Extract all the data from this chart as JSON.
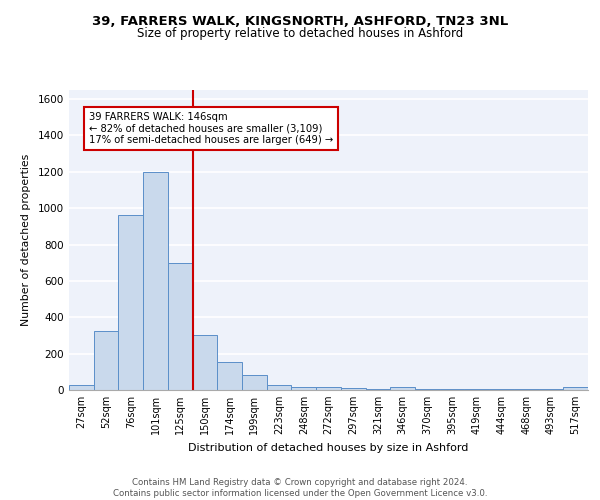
{
  "title1": "39, FARRERS WALK, KINGSNORTH, ASHFORD, TN23 3NL",
  "title2": "Size of property relative to detached houses in Ashford",
  "xlabel": "Distribution of detached houses by size in Ashford",
  "ylabel": "Number of detached properties",
  "categories": [
    "27sqm",
    "52sqm",
    "76sqm",
    "101sqm",
    "125sqm",
    "150sqm",
    "174sqm",
    "199sqm",
    "223sqm",
    "248sqm",
    "272sqm",
    "297sqm",
    "321sqm",
    "346sqm",
    "370sqm",
    "395sqm",
    "419sqm",
    "444sqm",
    "468sqm",
    "493sqm",
    "517sqm"
  ],
  "values": [
    28,
    325,
    965,
    1200,
    700,
    305,
    155,
    80,
    25,
    18,
    15,
    12,
    5,
    18,
    5,
    5,
    5,
    5,
    5,
    5,
    18
  ],
  "bar_color": "#c9d9ec",
  "bar_edge_color": "#5b8fc9",
  "vline_x_idx": 4.5,
  "vline_color": "#cc0000",
  "annotation_text": "39 FARRERS WALK: 146sqm\n← 82% of detached houses are smaller (3,109)\n17% of semi-detached houses are larger (649) →",
  "annotation_box_color": "white",
  "annotation_box_edge": "#cc0000",
  "ylim": [
    0,
    1650
  ],
  "yticks": [
    0,
    200,
    400,
    600,
    800,
    1000,
    1200,
    1400,
    1600
  ],
  "footer": "Contains HM Land Registry data © Crown copyright and database right 2024.\nContains public sector information licensed under the Open Government Licence v3.0.",
  "bg_color": "#eef2fa",
  "grid_color": "white"
}
